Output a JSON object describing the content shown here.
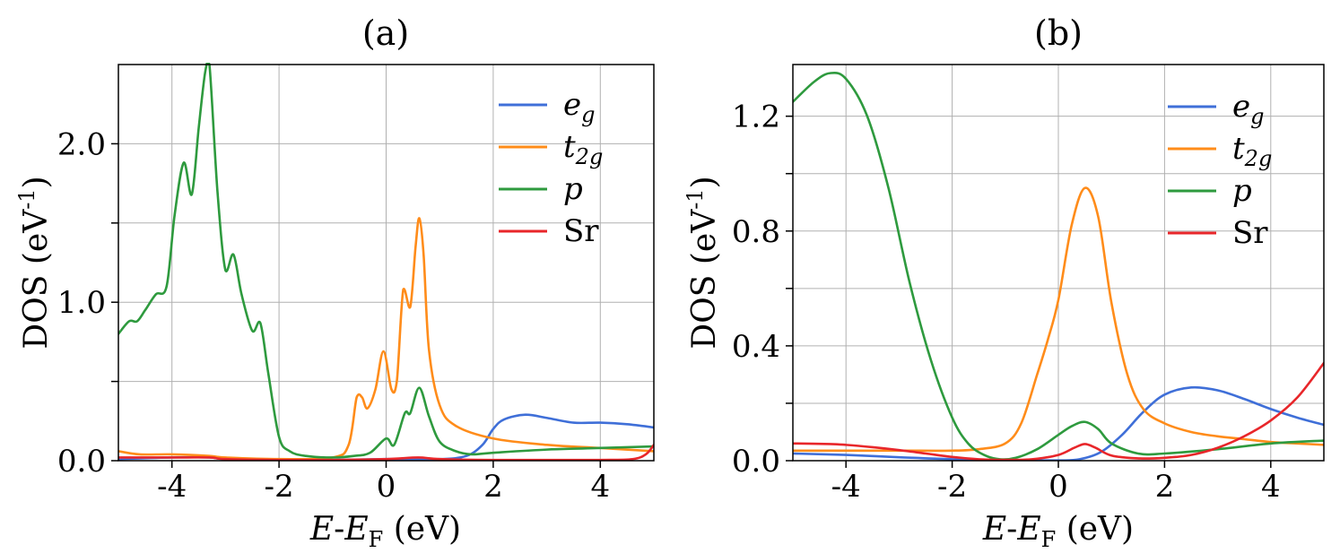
{
  "chart_data": [
    {
      "type": "line",
      "title": "(a)",
      "xlabel_prefix": "E",
      "xlabel_sep": "-",
      "xlabel_mid": "E",
      "xlabel_sub": "F",
      "xlabel_unit": " (eV)",
      "ylabel_main": "DOS (eV",
      "ylabel_sup": "-1",
      "ylabel_close": ")",
      "xlim": [
        -5,
        5
      ],
      "ylim": [
        0,
        2.5
      ],
      "xticks": [
        -4,
        -2,
        0,
        2,
        4
      ],
      "xtick_labels": [
        "-4",
        "-2",
        "0",
        "2",
        "4"
      ],
      "yticks": [
        0,
        1.0,
        2.0
      ],
      "ytick_labels": [
        "0.0",
        "1.0",
        "2.0"
      ],
      "ygrid": [
        0,
        0.5,
        1.0,
        1.5,
        2.0
      ],
      "grid": true,
      "legend_position": "top-right",
      "series": [
        {
          "name": "eg",
          "label_main": "e",
          "label_sub": "g",
          "color": "#3f6fd8",
          "x": [
            -5,
            -4,
            -3.3,
            -3,
            -2,
            -1,
            0,
            1,
            1.5,
            1.8,
            2,
            2.2,
            2.6,
            3,
            3.5,
            4,
            4.5,
            5
          ],
          "y": [
            0.01,
            0.02,
            0.02,
            0.01,
            0.005,
            0.005,
            0.01,
            0.01,
            0.03,
            0.1,
            0.2,
            0.26,
            0.29,
            0.27,
            0.24,
            0.24,
            0.23,
            0.21
          ]
        },
        {
          "name": "t2g",
          "label_main": "t",
          "label_sub": "2g",
          "color": "#ff8c1a",
          "x": [
            -5,
            -4.6,
            -4,
            -3.3,
            -3,
            -2,
            -1,
            -0.7,
            -0.55,
            -0.45,
            -0.35,
            -0.2,
            -0.05,
            0.1,
            0.2,
            0.32,
            0.45,
            0.55,
            0.62,
            0.7,
            0.8,
            1.0,
            1.3,
            2,
            3,
            4,
            5
          ],
          "y": [
            0.06,
            0.04,
            0.04,
            0.03,
            0.02,
            0.01,
            0.02,
            0.1,
            0.4,
            0.4,
            0.33,
            0.45,
            0.69,
            0.45,
            0.5,
            1.08,
            0.97,
            1.35,
            1.53,
            1.3,
            0.7,
            0.35,
            0.22,
            0.14,
            0.1,
            0.08,
            0.06
          ]
        },
        {
          "name": "p",
          "label_main": "p",
          "label_sub": "",
          "color": "#2e9a3e",
          "x": [
            -5,
            -4.8,
            -4.65,
            -4.5,
            -4.3,
            -4.1,
            -3.95,
            -3.78,
            -3.63,
            -3.5,
            -3.38,
            -3.3,
            -3.15,
            -3,
            -2.85,
            -2.7,
            -2.5,
            -2.35,
            -2.2,
            -2,
            -1.8,
            -1.5,
            -1,
            -0.6,
            -0.3,
            0,
            0.15,
            0.35,
            0.45,
            0.62,
            0.8,
            1.0,
            1.3,
            1.6,
            2,
            3,
            4,
            5
          ],
          "y": [
            0.8,
            0.88,
            0.88,
            0.95,
            1.05,
            1.1,
            1.55,
            1.88,
            1.68,
            2.1,
            2.45,
            2.5,
            1.7,
            1.2,
            1.3,
            1.05,
            0.82,
            0.87,
            0.55,
            0.15,
            0.06,
            0.03,
            0.02,
            0.03,
            0.05,
            0.14,
            0.1,
            0.3,
            0.3,
            0.46,
            0.28,
            0.12,
            0.06,
            0.04,
            0.05,
            0.07,
            0.08,
            0.09
          ]
        },
        {
          "name": "Sr",
          "label_main": "Sr",
          "label_sub": "",
          "color": "#e8262a",
          "x": [
            -5,
            -4,
            -3.3,
            -3,
            -2,
            -1,
            0,
            0.6,
            1,
            2,
            3,
            4,
            4.6,
            4.85,
            5
          ],
          "y": [
            0.02,
            0.02,
            0.02,
            0.01,
            0.005,
            0.005,
            0.01,
            0.02,
            0.01,
            0.005,
            0.005,
            0.005,
            0.01,
            0.04,
            0.1
          ]
        }
      ]
    },
    {
      "type": "line",
      "title": "(b)",
      "xlabel_prefix": "E",
      "xlabel_sep": "-",
      "xlabel_mid": "E",
      "xlabel_sub": "F",
      "xlabel_unit": " (eV)",
      "ylabel_main": "DOS (eV",
      "ylabel_sup": "-1",
      "ylabel_close": ")",
      "xlim": [
        -5,
        5
      ],
      "ylim": [
        0,
        1.38
      ],
      "xticks": [
        -4,
        -2,
        0,
        2,
        4
      ],
      "xtick_labels": [
        "-4",
        "-2",
        "0",
        "2",
        "4"
      ],
      "yticks": [
        0,
        0.4,
        0.8,
        1.2
      ],
      "ytick_labels": [
        "0.0",
        "0.4",
        "0.8",
        "1.2"
      ],
      "ygrid": [
        0,
        0.2,
        0.4,
        0.6,
        0.8,
        1.0,
        1.2
      ],
      "grid": true,
      "legend_position": "top-right",
      "series": [
        {
          "name": "eg",
          "label_main": "e",
          "label_sub": "g",
          "color": "#3f6fd8",
          "x": [
            -5,
            -4,
            -3,
            -2,
            -1,
            0,
            0.4,
            0.8,
            1.2,
            1.6,
            2,
            2.5,
            3,
            3.5,
            4,
            4.5,
            5
          ],
          "y": [
            0.025,
            0.02,
            0.012,
            0.005,
            0.002,
            0.001,
            0.005,
            0.03,
            0.09,
            0.17,
            0.23,
            0.255,
            0.245,
            0.215,
            0.18,
            0.15,
            0.125
          ]
        },
        {
          "name": "t2g",
          "label_main": "t",
          "label_sub": "2g",
          "color": "#ff8c1a",
          "x": [
            -5,
            -4,
            -3,
            -2,
            -1.5,
            -1,
            -0.7,
            -0.4,
            -0.2,
            0,
            0.25,
            0.5,
            0.75,
            1,
            1.3,
            1.6,
            2,
            2.5,
            3,
            3.5,
            4,
            4.5,
            5
          ],
          "y": [
            0.035,
            0.035,
            0.035,
            0.035,
            0.04,
            0.06,
            0.13,
            0.3,
            0.42,
            0.56,
            0.82,
            0.95,
            0.85,
            0.55,
            0.3,
            0.18,
            0.13,
            0.1,
            0.085,
            0.075,
            0.065,
            0.06,
            0.055
          ]
        },
        {
          "name": "p",
          "label_main": "p",
          "label_sub": "",
          "color": "#2e9a3e",
          "x": [
            -5,
            -4.6,
            -4.3,
            -4,
            -3.6,
            -3.2,
            -2.8,
            -2.4,
            -2,
            -1.7,
            -1.4,
            -1.1,
            -0.8,
            -0.4,
            0,
            0.25,
            0.5,
            0.75,
            1,
            1.5,
            2,
            3,
            4,
            5
          ],
          "y": [
            1.25,
            1.32,
            1.35,
            1.33,
            1.2,
            0.95,
            0.62,
            0.35,
            0.15,
            0.06,
            0.02,
            0.005,
            0.01,
            0.04,
            0.09,
            0.12,
            0.135,
            0.11,
            0.06,
            0.025,
            0.025,
            0.04,
            0.06,
            0.07
          ]
        },
        {
          "name": "Sr",
          "label_main": "Sr",
          "label_sub": "",
          "color": "#e8262a",
          "x": [
            -5,
            -4.3,
            -4,
            -3.5,
            -3,
            -2.5,
            -2,
            -1.5,
            -1,
            -0.5,
            0,
            0.3,
            0.5,
            0.7,
            1,
            1.5,
            2,
            2.5,
            3,
            3.5,
            4,
            4.5,
            5
          ],
          "y": [
            0.06,
            0.058,
            0.055,
            0.047,
            0.037,
            0.025,
            0.013,
            0.005,
            0.003,
            0.005,
            0.02,
            0.045,
            0.058,
            0.045,
            0.018,
            0.008,
            0.01,
            0.02,
            0.045,
            0.085,
            0.14,
            0.22,
            0.34
          ]
        }
      ]
    }
  ]
}
